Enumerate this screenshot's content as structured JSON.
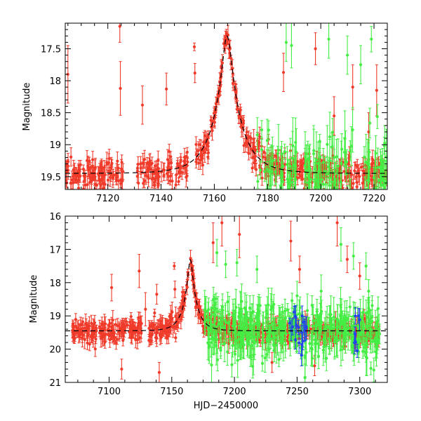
{
  "chart_data": [
    {
      "type": "scatter",
      "title": "",
      "xlabel": "",
      "ylabel": "Magnitude",
      "xlim": [
        7104,
        7225
      ],
      "ylim": [
        19.7,
        17.1
      ],
      "y_inverted": true,
      "x_ticks": [
        7120,
        7140,
        7160,
        7180,
        7200,
        7220
      ],
      "y_ticks": [
        17.5,
        18,
        18.5,
        19,
        19.5
      ],
      "model": {
        "name": "model light curve",
        "style": "dashed",
        "peak_x": 7164.8,
        "peak_mag": 17.3,
        "baseline_mag": 19.45,
        "tE": 10
      },
      "series": [
        {
          "name": "red telescope",
          "color": "#f03a2a",
          "x_range": [
            7104,
            7225
          ],
          "gaps": [
            [
              7126,
              7131
            ],
            [
              7150,
              7153
            ]
          ],
          "n_points": 620,
          "scatter": 0.12,
          "err_range": [
            0.05,
            0.16
          ],
          "outliers": [
            {
              "x": 7105,
              "y": 17.9,
              "err": 0.45
            },
            {
              "x": 7124.5,
              "y": 17.15,
              "err": 0.25
            },
            {
              "x": 7124.7,
              "y": 18.12,
              "err": 0.42
            },
            {
              "x": 7133,
              "y": 18.38,
              "err": 0.3
            },
            {
              "x": 7142,
              "y": 18.13,
              "err": 0.25
            },
            {
              "x": 7152.5,
              "y": 17.47,
              "err": 0.06
            },
            {
              "x": 7152.7,
              "y": 17.88,
              "err": 0.15
            },
            {
              "x": 7186,
              "y": 17.87,
              "err": 0.3
            },
            {
              "x": 7198,
              "y": 17.5,
              "err": 0.25
            },
            {
              "x": 7205,
              "y": 18.55,
              "err": 0.3
            },
            {
              "x": 7212,
              "y": 18.1,
              "err": 0.35
            },
            {
              "x": 7218,
              "y": 18.8,
              "err": 0.3
            },
            {
              "x": 7221,
              "y": 18.15,
              "err": 0.4
            }
          ]
        },
        {
          "name": "green telescope",
          "color": "#44ee44",
          "x_range": [
            7176,
            7225
          ],
          "gaps": [
            [
              7191,
              7194
            ],
            [
              7212,
              7216
            ]
          ],
          "n_points": 170,
          "scatter": 0.3,
          "err_range": [
            0.1,
            0.45
          ],
          "outliers": [
            {
              "x": 7187,
              "y": 17.4,
              "err": 0.3
            },
            {
              "x": 7189,
              "y": 17.45,
              "err": 0.35
            },
            {
              "x": 7203,
              "y": 17.35,
              "err": 0.3
            },
            {
              "x": 7210,
              "y": 17.6,
              "err": 0.3
            },
            {
              "x": 7215,
              "y": 17.75,
              "err": 0.3
            },
            {
              "x": 7219,
              "y": 17.35,
              "err": 0.2
            }
          ]
        }
      ]
    },
    {
      "type": "scatter",
      "title": "",
      "xlabel": "HJD−2450000",
      "ylabel": "Magnitude",
      "xlim": [
        7065,
        7322
      ],
      "ylim": [
        21,
        16
      ],
      "y_inverted": true,
      "x_ticks": [
        7100,
        7150,
        7200,
        7250,
        7300
      ],
      "y_ticks": [
        16,
        17,
        18,
        19,
        20,
        21
      ],
      "model": {
        "name": "model light curve",
        "style": "dashed",
        "peak_x": 7164.8,
        "peak_mag": 17.3,
        "baseline_mag": 19.45,
        "tE": 10
      },
      "series": [
        {
          "name": "red telescope",
          "color": "#f03a2a",
          "x_range": [
            7070,
            7316
          ],
          "gaps": [
            [
              7090,
              7092
            ],
            [
              7126,
              7131
            ]
          ],
          "n_points": 760,
          "scatter": 0.16,
          "err_range": [
            0.08,
            0.3
          ],
          "outliers": [
            {
              "x": 7102,
              "y": 18.15,
              "err": 0.4
            },
            {
              "x": 7124,
              "y": 17.65,
              "err": 0.5
            },
            {
              "x": 7129,
              "y": 18.8,
              "err": 0.5
            },
            {
              "x": 7138,
              "y": 18.35,
              "err": 0.3
            },
            {
              "x": 7152,
              "y": 17.5,
              "err": 0.1
            },
            {
              "x": 7152.5,
              "y": 18.2,
              "err": 0.25
            },
            {
              "x": 7183,
              "y": 16.8,
              "err": 0.6
            },
            {
              "x": 7190,
              "y": 16.2,
              "err": 0.7
            },
            {
              "x": 7204,
              "y": 16.55,
              "err": 0.7
            },
            {
              "x": 7245,
              "y": 16.75,
              "err": 0.6
            },
            {
              "x": 7252,
              "y": 17.6,
              "err": 0.4
            },
            {
              "x": 7282,
              "y": 16.2,
              "err": 0.7
            },
            {
              "x": 7290,
              "y": 17.3,
              "err": 0.4
            },
            {
              "x": 7300,
              "y": 17.8,
              "err": 0.4
            },
            {
              "x": 7110,
              "y": 20.6,
              "err": 0.3
            },
            {
              "x": 7140,
              "y": 20.7,
              "err": 0.3
            },
            {
              "x": 7230,
              "y": 20.4,
              "err": 0.3
            },
            {
              "x": 7264,
              "y": 20.5,
              "err": 0.3
            }
          ]
        },
        {
          "name": "green telescope",
          "color": "#44ee44",
          "x_range": [
            7176,
            7316
          ],
          "gaps": [],
          "n_points": 420,
          "scatter": 0.45,
          "err_range": [
            0.15,
            0.6
          ],
          "outliers": [
            {
              "x": 7186,
              "y": 17.1,
              "err": 0.4
            },
            {
              "x": 7193,
              "y": 17.45,
              "err": 0.4
            },
            {
              "x": 7202,
              "y": 17.4,
              "err": 0.4
            },
            {
              "x": 7218,
              "y": 17.6,
              "err": 0.4
            },
            {
              "x": 7285,
              "y": 16.85,
              "err": 0.5
            },
            {
              "x": 7295,
              "y": 17.2,
              "err": 0.4
            },
            {
              "x": 7305,
              "y": 17.5,
              "err": 0.4
            }
          ]
        },
        {
          "name": "blue telescope",
          "color": "#2244ee",
          "x_range": [
            7244,
            7300
          ],
          "gaps": [
            [
              7258,
              7295
            ]
          ],
          "n_points": 26,
          "scatter": 0.3,
          "err_range": [
            0.15,
            0.35
          ],
          "outliers": [
            {
              "x": 7254,
              "y": 19.0,
              "err": 0.3
            },
            {
              "x": 7298,
              "y": 20.05,
              "err": 0.2
            }
          ]
        }
      ]
    }
  ]
}
